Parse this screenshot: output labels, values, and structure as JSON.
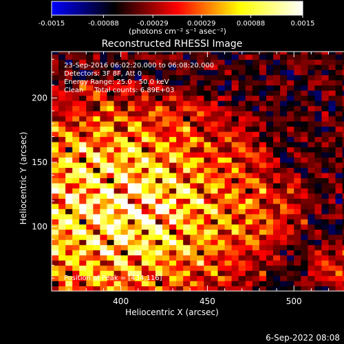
{
  "chart_data": {
    "type": "heatmap",
    "title": "Reconstructed RHESSI Image",
    "xlabel": "Heliocentric X (arcsec)",
    "ylabel": "Heliocentric Y (arcsec)",
    "xlim": [
      360,
      548
    ],
    "ylim": [
      50,
      236
    ],
    "x_ticks": [
      "400",
      "450",
      "500"
    ],
    "y_ticks": [
      "100",
      "150",
      "200"
    ],
    "x_tick_values": [
      400,
      450,
      500
    ],
    "y_tick_values": [
      100,
      150,
      200
    ],
    "colorbar": {
      "ticks": [
        "-0.0015",
        "-0.00088",
        "-0.00029",
        "0.00029",
        "0.00088",
        "0.0015"
      ],
      "tick_values": [
        -0.0015,
        -0.00088,
        -0.00029,
        0.00029,
        0.00088,
        0.0015
      ],
      "range": [
        -0.0015,
        0.0015
      ],
      "colors": [
        "#0000ff",
        "#000000",
        "#ff0000",
        "#ffff00",
        "#ffffff"
      ]
    },
    "unit_label": "(photons cm⁻² s⁻¹ asec⁻²)",
    "annotations": [
      "23-Sep-2016 06:02:20.000 to 06:08:20.000",
      "Detectors: 3F 8F, Att 0",
      "Energy Range: 25.0 - 50.0 keV",
      "Clean     Total counts: 6.89E+03",
      "Position of Peak = [434,116]"
    ],
    "peak": {
      "x": 434,
      "y": 116
    }
  },
  "footer_timestamp": "6-Sep-2022 08:08"
}
